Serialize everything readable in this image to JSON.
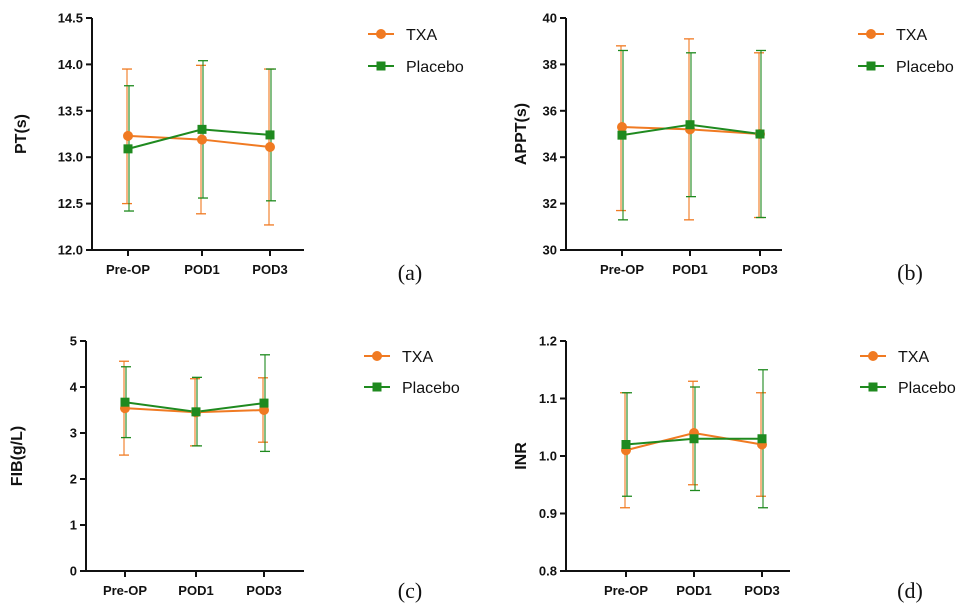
{
  "chart_data": [
    {
      "type": "line",
      "panel_label": "(a)",
      "categories": [
        "Pre-OP",
        "POD1",
        "POD3"
      ],
      "ylabel": "PT(s)",
      "ylim": [
        12.0,
        14.5
      ],
      "yticks": [
        "12.0",
        "12.5",
        "13.0",
        "13.5",
        "14.0",
        "14.5"
      ],
      "legend_position": "right",
      "series": [
        {
          "name": "TXA",
          "color": "#F07A22",
          "marker": "circle",
          "values": [
            13.23,
            13.19,
            13.11
          ],
          "err_low": [
            12.5,
            12.39,
            12.27
          ],
          "err_high": [
            13.95,
            13.99,
            13.95
          ]
        },
        {
          "name": "Placebo",
          "color": "#1F8A1F",
          "marker": "square",
          "values": [
            13.09,
            13.3,
            13.24
          ],
          "err_low": [
            12.42,
            12.56,
            12.53
          ],
          "err_high": [
            13.77,
            14.04,
            13.95
          ]
        }
      ]
    },
    {
      "type": "line",
      "panel_label": "(b)",
      "categories": [
        "Pre-OP",
        "POD1",
        "POD3"
      ],
      "ylabel": "APPT(s)",
      "ylim": [
        30,
        40
      ],
      "yticks": [
        "30",
        "32",
        "34",
        "36",
        "38",
        "40"
      ],
      "legend_position": "right",
      "series": [
        {
          "name": "TXA",
          "color": "#F07A22",
          "marker": "circle",
          "values": [
            35.3,
            35.2,
            35.0
          ],
          "err_low": [
            31.7,
            31.3,
            31.4
          ],
          "err_high": [
            38.8,
            39.1,
            38.5
          ]
        },
        {
          "name": "Placebo",
          "color": "#1F8A1F",
          "marker": "square",
          "values": [
            34.95,
            35.4,
            35.0
          ],
          "err_low": [
            31.3,
            32.3,
            31.4
          ],
          "err_high": [
            38.6,
            38.5,
            38.6
          ]
        }
      ]
    },
    {
      "type": "line",
      "panel_label": "(c)",
      "categories": [
        "Pre-OP",
        "POD1",
        "POD3"
      ],
      "ylabel": "FIB(g/L)",
      "ylim": [
        0,
        5
      ],
      "yticks": [
        "0",
        "1",
        "2",
        "3",
        "4",
        "5"
      ],
      "legend_position": "right",
      "series": [
        {
          "name": "TXA",
          "color": "#F07A22",
          "marker": "circle",
          "values": [
            3.54,
            3.45,
            3.5
          ],
          "err_low": [
            2.52,
            2.72,
            2.8
          ],
          "err_high": [
            4.56,
            4.18,
            4.2
          ]
        },
        {
          "name": "Placebo",
          "color": "#1F8A1F",
          "marker": "square",
          "values": [
            3.67,
            3.46,
            3.65
          ],
          "err_low": [
            2.9,
            2.72,
            2.6
          ],
          "err_high": [
            4.44,
            4.21,
            4.7
          ]
        }
      ]
    },
    {
      "type": "line",
      "panel_label": "(d)",
      "categories": [
        "Pre-OP",
        "POD1",
        "POD3"
      ],
      "ylabel": "INR",
      "ylim": [
        0.8,
        1.2
      ],
      "yticks": [
        "0.8",
        "0.9",
        "1.0",
        "1.1",
        "1.2"
      ],
      "legend_position": "right",
      "series": [
        {
          "name": "TXA",
          "color": "#F07A22",
          "marker": "circle",
          "values": [
            1.01,
            1.04,
            1.02
          ],
          "err_low": [
            0.91,
            0.95,
            0.93
          ],
          "err_high": [
            1.11,
            1.13,
            1.11
          ]
        },
        {
          "name": "Placebo",
          "color": "#1F8A1F",
          "marker": "square",
          "values": [
            1.02,
            1.03,
            1.03
          ],
          "err_low": [
            0.93,
            0.94,
            0.91
          ],
          "err_high": [
            1.11,
            1.12,
            1.15
          ]
        }
      ]
    }
  ]
}
